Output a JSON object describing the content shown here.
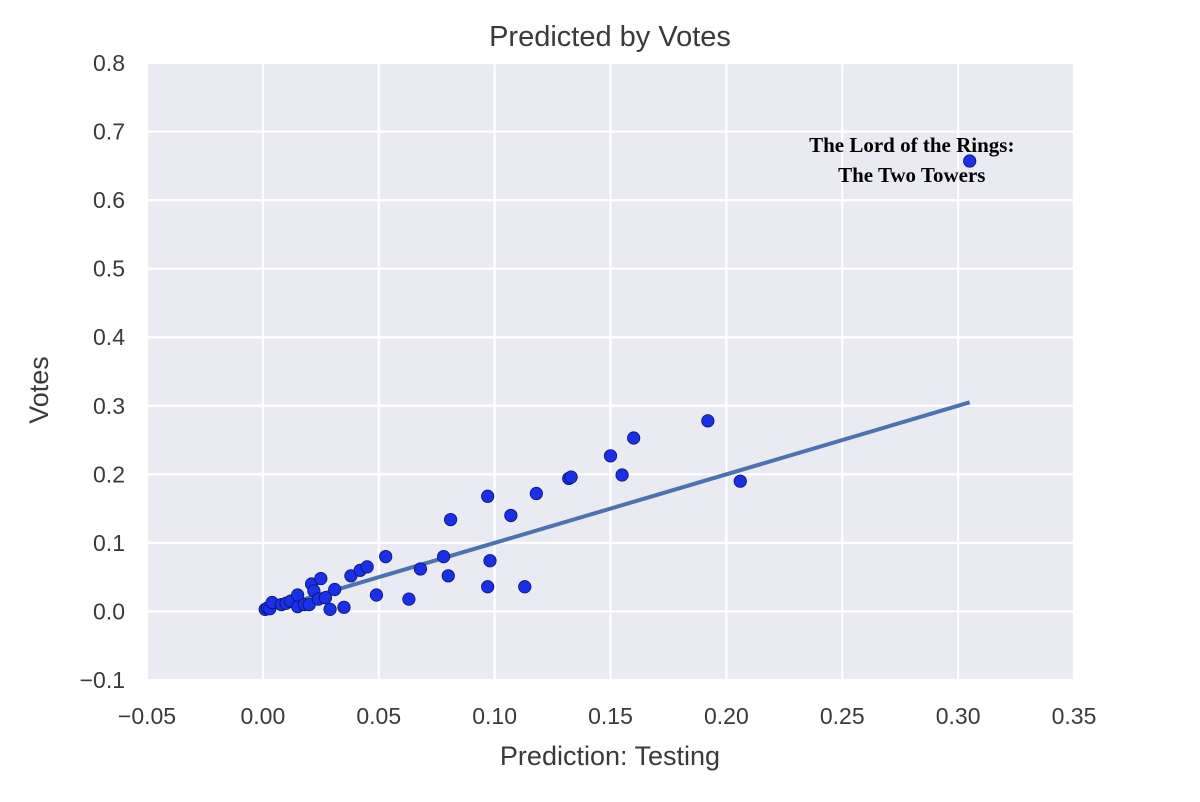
{
  "chart_data": {
    "type": "scatter",
    "title": "Predicted by Votes",
    "xlabel": "Prediction: Testing",
    "ylabel": "Votes",
    "xlim": [
      -0.05,
      0.35
    ],
    "ylim": [
      -0.1,
      0.8
    ],
    "x_ticks": [
      -0.05,
      0.0,
      0.05,
      0.1,
      0.15,
      0.2,
      0.25,
      0.3,
      0.35
    ],
    "x_tick_labels": [
      "−0.05",
      "0.00",
      "0.05",
      "0.10",
      "0.15",
      "0.20",
      "0.25",
      "0.30",
      "0.35"
    ],
    "y_ticks": [
      -0.1,
      0.0,
      0.1,
      0.2,
      0.3,
      0.4,
      0.5,
      0.6,
      0.7,
      0.8
    ],
    "y_tick_labels": [
      "−0.1",
      "0.0",
      "0.1",
      "0.2",
      "0.3",
      "0.4",
      "0.5",
      "0.6",
      "0.7",
      "0.8"
    ],
    "grid": true,
    "legend": "none",
    "colors": {
      "background": "#eaeaf2",
      "grid": "#ffffff",
      "points": "#1a2fe8",
      "point_edge": "#0a1466",
      "line": "#4c72b0",
      "text": "#3a3a3a"
    },
    "series": [
      {
        "type": "scatter",
        "points": [
          [
            0.001,
            0.003
          ],
          [
            0.002,
            0.005
          ],
          [
            0.003,
            0.004
          ],
          [
            0.004,
            0.013
          ],
          [
            0.008,
            0.01
          ],
          [
            0.01,
            0.012
          ],
          [
            0.012,
            0.015
          ],
          [
            0.015,
            0.007
          ],
          [
            0.015,
            0.024
          ],
          [
            0.018,
            0.01
          ],
          [
            0.02,
            0.01
          ],
          [
            0.021,
            0.04
          ],
          [
            0.022,
            0.03
          ],
          [
            0.024,
            0.018
          ],
          [
            0.025,
            0.048
          ],
          [
            0.027,
            0.02
          ],
          [
            0.029,
            0.003
          ],
          [
            0.031,
            0.032
          ],
          [
            0.035,
            0.006
          ],
          [
            0.038,
            0.052
          ],
          [
            0.042,
            0.06
          ],
          [
            0.045,
            0.065
          ],
          [
            0.049,
            0.024
          ],
          [
            0.053,
            0.08
          ],
          [
            0.063,
            0.018
          ],
          [
            0.068,
            0.062
          ],
          [
            0.078,
            0.08
          ],
          [
            0.08,
            0.052
          ],
          [
            0.081,
            0.134
          ],
          [
            0.097,
            0.036
          ],
          [
            0.097,
            0.168
          ],
          [
            0.098,
            0.074
          ],
          [
            0.107,
            0.14
          ],
          [
            0.113,
            0.036
          ],
          [
            0.118,
            0.172
          ],
          [
            0.132,
            0.194
          ],
          [
            0.133,
            0.196
          ],
          [
            0.15,
            0.227
          ],
          [
            0.155,
            0.199
          ],
          [
            0.16,
            0.253
          ],
          [
            0.192,
            0.278
          ],
          [
            0.206,
            0.19
          ],
          [
            0.305,
            0.657
          ]
        ]
      },
      {
        "type": "line",
        "points": [
          [
            0.0,
            0.0
          ],
          [
            0.305,
            0.305
          ]
        ]
      }
    ],
    "annotations": [
      {
        "lines": [
          "The Lord of the Rings:",
          "The Two Towers"
        ],
        "x": 0.28,
        "y": 0.657
      }
    ]
  }
}
